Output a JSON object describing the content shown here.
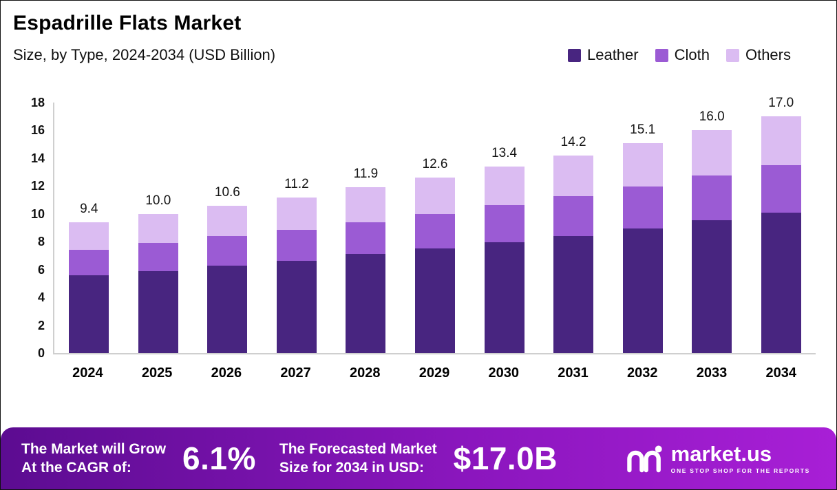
{
  "header": {
    "title": "Espadrille Flats Market",
    "subtitle": "Size, by Type, 2024-2034 (USD Billion)"
  },
  "legend": [
    {
      "label": "Leather",
      "color": "#482580"
    },
    {
      "label": "Cloth",
      "color": "#9B5BD4"
    },
    {
      "label": "Others",
      "color": "#DBBCF2"
    }
  ],
  "chart_data": {
    "type": "bar",
    "stacked": true,
    "title": "Espadrille Flats Market Size, by Type, 2024-2034 (USD Billion)",
    "categories": [
      "2024",
      "2025",
      "2026",
      "2027",
      "2028",
      "2029",
      "2030",
      "2031",
      "2032",
      "2033",
      "2034"
    ],
    "series": [
      {
        "name": "Leather",
        "color": "#482580",
        "values": [
          5.6,
          5.9,
          6.3,
          6.65,
          7.1,
          7.5,
          7.95,
          8.4,
          8.95,
          9.55,
          10.1
        ]
      },
      {
        "name": "Cloth",
        "color": "#9B5BD4",
        "values": [
          1.8,
          2.0,
          2.1,
          2.2,
          2.3,
          2.5,
          2.7,
          2.9,
          3.0,
          3.2,
          3.4
        ]
      },
      {
        "name": "Others",
        "color": "#DBBCF2",
        "values": [
          2.0,
          2.1,
          2.2,
          2.35,
          2.5,
          2.6,
          2.75,
          2.9,
          3.15,
          3.25,
          3.5
        ]
      }
    ],
    "totals": [
      9.4,
      10.0,
      10.6,
      11.2,
      11.9,
      12.6,
      13.4,
      14.2,
      15.1,
      16.0,
      17.0
    ],
    "total_labels": [
      "9.4",
      "10.0",
      "10.6",
      "11.2",
      "11.9",
      "12.6",
      "13.4",
      "14.2",
      "15.1",
      "16.0",
      "17.0"
    ],
    "xlabel": "",
    "ylabel": "",
    "ylim": [
      0,
      18
    ],
    "yticks": [
      0,
      2,
      4,
      6,
      8,
      10,
      12,
      14,
      16,
      18
    ],
    "grid": false,
    "legend_position": "top-right"
  },
  "footer": {
    "cagr_line1": "The Market will Grow",
    "cagr_line2": "At the CAGR of:",
    "cagr_value": "6.1%",
    "forecast_line1": "The Forecasted Market",
    "forecast_line2": "Size for 2034 in USD:",
    "forecast_value": "$17.0B",
    "logo_text": "market.us",
    "logo_tagline": "ONE STOP SHOP FOR THE REPORTS"
  }
}
